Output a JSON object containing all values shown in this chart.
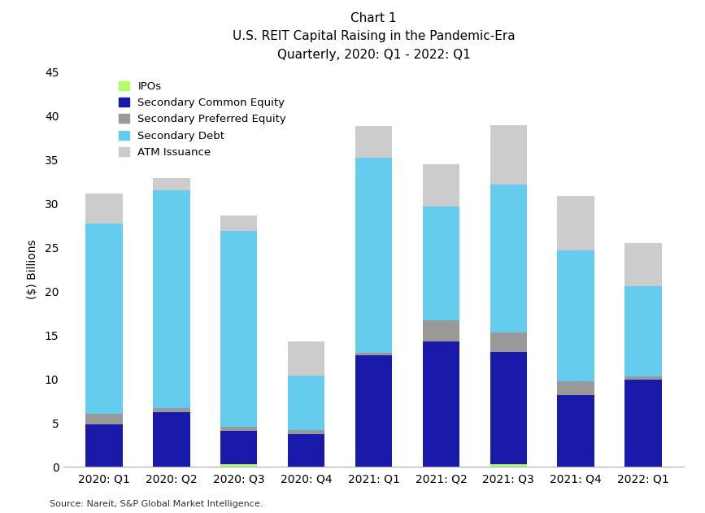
{
  "categories": [
    "2020: Q1",
    "2020: Q2",
    "2020: Q3",
    "2020: Q4",
    "2021: Q1",
    "2021: Q2",
    "2021: Q3",
    "2021: Q4",
    "2022: Q1"
  ],
  "series": {
    "IPOs": [
      0.0,
      0.0,
      0.3,
      0.0,
      0.0,
      0.0,
      0.3,
      0.0,
      0.0
    ],
    "Secondary Common Equity": [
      4.8,
      6.2,
      3.8,
      3.7,
      12.7,
      14.3,
      12.8,
      8.2,
      9.9
    ],
    "Secondary Preferred Equity": [
      1.2,
      0.5,
      0.5,
      0.5,
      0.3,
      2.4,
      2.2,
      1.5,
      0.4
    ],
    "Secondary Debt": [
      21.7,
      24.8,
      22.3,
      6.2,
      22.2,
      13.0,
      16.9,
      15.0,
      10.3
    ],
    "ATM Issuance": [
      3.4,
      1.4,
      1.7,
      3.9,
      3.6,
      4.8,
      6.7,
      6.2,
      4.9
    ]
  },
  "colors": {
    "IPOs": "#b3ff66",
    "Secondary Common Equity": "#1a1aaa",
    "Secondary Preferred Equity": "#999999",
    "Secondary Debt": "#66ccee",
    "ATM Issuance": "#cccccc"
  },
  "title_line1": "Chart 1",
  "title_line2": "U.S. REIT Capital Raising in the Pandemic-Era",
  "title_line3": "Quarterly, 2020: Q1 - 2022: Q1",
  "ylabel": "($) Billions",
  "ylim": [
    0,
    45
  ],
  "yticks": [
    0,
    5,
    10,
    15,
    20,
    25,
    30,
    35,
    40,
    45
  ],
  "source": "Source: Nareit, S&P Global Market Intelligence.",
  "legend_order": [
    "IPOs",
    "Secondary Common Equity",
    "Secondary Preferred Equity",
    "Secondary Debt",
    "ATM Issuance"
  ],
  "background_color": "#ffffff"
}
